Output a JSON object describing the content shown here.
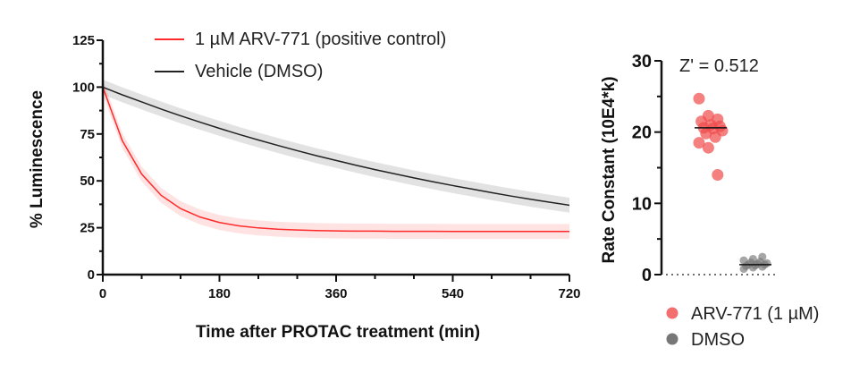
{
  "chart_data": [
    {
      "type": "line",
      "xlabel": "Time after PROTAC treatment (min)",
      "ylabel": "% Luminescence",
      "xlim": [
        0,
        720
      ],
      "ylim": [
        0,
        125
      ],
      "xticks": [
        "0",
        "180",
        "360",
        "540",
        "720"
      ],
      "yticks": [
        "0",
        "25",
        "50",
        "75",
        "100",
        "125"
      ],
      "legend_position": "top",
      "grid": false,
      "x": [
        0,
        30,
        60,
        90,
        120,
        150,
        180,
        210,
        240,
        270,
        300,
        330,
        360,
        390,
        420,
        450,
        480,
        510,
        540,
        570,
        600,
        630,
        660,
        690,
        720
      ],
      "series": [
        {
          "name": "1 µM ARV-771 (positive control)",
          "color": "#ff2a2a",
          "error": 4,
          "values": [
            100,
            71.5,
            53.6,
            42.3,
            35.2,
            30.7,
            27.8,
            26.0,
            24.9,
            24.2,
            23.8,
            23.5,
            23.3,
            23.2,
            23.2,
            23.1,
            23.1,
            23.1,
            23.0,
            23.0,
            23.0,
            23.0,
            23.0,
            23.0,
            23.0
          ]
        },
        {
          "name": "Vehicle (DMSO)",
          "color": "#222222",
          "error": 4,
          "values": [
            100,
            95.9,
            92.1,
            88.3,
            84.7,
            81.3,
            78.0,
            74.8,
            71.8,
            68.9,
            66.1,
            63.4,
            60.9,
            58.4,
            56.0,
            53.8,
            51.6,
            49.5,
            47.5,
            45.6,
            43.7,
            41.9,
            40.2,
            38.6,
            37.0
          ]
        }
      ]
    },
    {
      "type": "scatter",
      "ylabel": "Rate Constant (10E4*k)",
      "ylim": [
        0,
        30
      ],
      "yticks": [
        "0",
        "10",
        "20",
        "30"
      ],
      "annotation": "Z' = 0.512",
      "legend_position": "bottom",
      "series": [
        {
          "name": "ARV-771 (1 µM)",
          "color": "#f04a4a",
          "median": 20.6,
          "values": [
            24.7,
            22.3,
            21.8,
            21.5,
            21.0,
            20.8,
            20.6,
            20.5,
            20.2,
            19.8,
            19.3,
            18.5,
            17.8,
            14.0
          ]
        },
        {
          "name": "DMSO",
          "color": "#777777",
          "median": 1.4,
          "values": [
            0.8,
            1.0,
            1.1,
            1.2,
            1.3,
            1.4,
            1.4,
            1.5,
            1.6,
            1.7,
            1.8,
            2.0,
            2.2,
            2.5
          ]
        }
      ]
    }
  ]
}
